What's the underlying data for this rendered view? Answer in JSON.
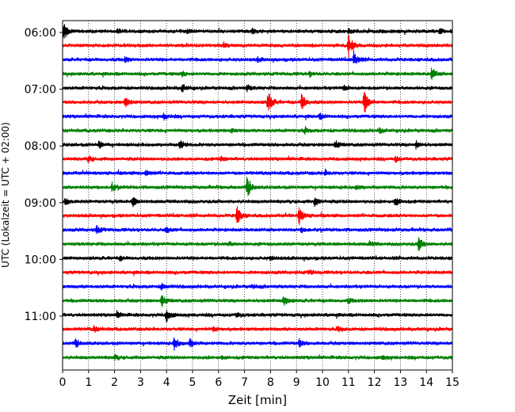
{
  "chart_data": {
    "type": "line",
    "title": "",
    "xlabel": "Zeit  [min]",
    "ylabel": "UTC (Lokalzeit = UTC + 02:00)",
    "xlim": [
      0,
      15
    ],
    "xticks": [
      0,
      1,
      2,
      3,
      4,
      5,
      6,
      7,
      8,
      9,
      10,
      11,
      12,
      13,
      14,
      15
    ],
    "grid": "vertical dotted",
    "yticks": [
      "06:00",
      "07:00",
      "08:00",
      "09:00",
      "10:00",
      "11:00"
    ],
    "trace_interval_min": 15,
    "trace_colors": [
      "#000000",
      "#ff0000",
      "#0000ff",
      "#008000"
    ],
    "traces": [
      {
        "start": "06:00",
        "color": "#000000",
        "events": [
          {
            "x": 0.05,
            "amp": 1.0
          },
          {
            "x": 2.1,
            "amp": 0.25
          },
          {
            "x": 4.8,
            "amp": 0.25
          },
          {
            "x": 7.3,
            "amp": 0.25
          },
          {
            "x": 11.0,
            "amp": 0.25
          },
          {
            "x": 14.5,
            "amp": 0.25
          }
        ]
      },
      {
        "start": "06:15",
        "color": "#ff0000",
        "events": [
          {
            "x": 6.2,
            "amp": 0.35
          },
          {
            "x": 11.0,
            "amp": 1.4
          }
        ]
      },
      {
        "start": "06:30",
        "color": "#0000ff",
        "events": [
          {
            "x": 2.4,
            "amp": 0.25
          },
          {
            "x": 11.2,
            "amp": 0.9
          },
          {
            "x": 7.5,
            "amp": 0.2
          }
        ]
      },
      {
        "start": "06:45",
        "color": "#008000",
        "events": [
          {
            "x": 4.6,
            "amp": 0.3
          },
          {
            "x": 14.2,
            "amp": 0.7
          },
          {
            "x": 9.5,
            "amp": 0.25
          }
        ]
      },
      {
        "start": "07:00",
        "color": "#000000",
        "events": [
          {
            "x": 4.6,
            "amp": 0.45
          },
          {
            "x": 7.1,
            "amp": 0.3
          },
          {
            "x": 10.8,
            "amp": 0.3
          }
        ]
      },
      {
        "start": "07:15",
        "color": "#ff0000",
        "events": [
          {
            "x": 2.4,
            "amp": 0.7
          },
          {
            "x": 7.9,
            "amp": 1.3
          },
          {
            "x": 9.2,
            "amp": 1.0
          },
          {
            "x": 11.6,
            "amp": 1.4
          }
        ]
      },
      {
        "start": "07:30",
        "color": "#0000ff",
        "events": [
          {
            "x": 3.9,
            "amp": 0.35
          },
          {
            "x": 9.9,
            "amp": 0.3
          }
        ]
      },
      {
        "start": "07:45",
        "color": "#008000",
        "events": [
          {
            "x": 9.3,
            "amp": 0.3
          },
          {
            "x": 12.2,
            "amp": 0.3
          },
          {
            "x": 6.5,
            "amp": 0.2
          }
        ]
      },
      {
        "start": "08:00",
        "color": "#000000",
        "events": [
          {
            "x": 1.4,
            "amp": 0.4
          },
          {
            "x": 4.5,
            "amp": 0.6
          },
          {
            "x": 10.5,
            "amp": 0.45
          },
          {
            "x": 13.6,
            "amp": 0.4
          }
        ]
      },
      {
        "start": "08:15",
        "color": "#ff0000",
        "events": [
          {
            "x": 1.0,
            "amp": 0.35
          },
          {
            "x": 6.1,
            "amp": 0.25
          },
          {
            "x": 12.8,
            "amp": 0.3
          }
        ]
      },
      {
        "start": "08:30",
        "color": "#0000ff",
        "events": [
          {
            "x": 3.2,
            "amp": 0.3
          },
          {
            "x": 10.1,
            "amp": 0.25
          }
        ]
      },
      {
        "start": "08:45",
        "color": "#008000",
        "events": [
          {
            "x": 1.9,
            "amp": 0.45
          },
          {
            "x": 7.1,
            "amp": 1.3
          },
          {
            "x": 11.3,
            "amp": 0.25
          }
        ]
      },
      {
        "start": "09:00",
        "color": "#000000",
        "events": [
          {
            "x": 0.1,
            "amp": 0.35
          },
          {
            "x": 2.7,
            "amp": 0.55
          },
          {
            "x": 9.7,
            "amp": 0.5
          },
          {
            "x": 12.8,
            "amp": 0.55
          }
        ]
      },
      {
        "start": "09:15",
        "color": "#ff0000",
        "events": [
          {
            "x": 6.7,
            "amp": 1.1
          },
          {
            "x": 9.1,
            "amp": 1.1
          }
        ]
      },
      {
        "start": "09:30",
        "color": "#0000ff",
        "events": [
          {
            "x": 1.3,
            "amp": 0.45
          },
          {
            "x": 4.0,
            "amp": 0.3
          },
          {
            "x": 9.2,
            "amp": 0.25
          }
        ]
      },
      {
        "start": "09:45",
        "color": "#008000",
        "events": [
          {
            "x": 6.4,
            "amp": 0.2
          },
          {
            "x": 11.8,
            "amp": 0.25
          },
          {
            "x": 13.7,
            "amp": 0.8
          }
        ]
      },
      {
        "start": "10:00",
        "color": "#000000",
        "events": [
          {
            "x": 2.2,
            "amp": 0.2
          },
          {
            "x": 8.0,
            "amp": 0.2
          }
        ]
      },
      {
        "start": "10:15",
        "color": "#ff0000",
        "events": [
          {
            "x": 9.5,
            "amp": 0.25
          }
        ]
      },
      {
        "start": "10:30",
        "color": "#0000ff",
        "events": [
          {
            "x": 3.8,
            "amp": 0.35
          },
          {
            "x": 7.3,
            "amp": 0.2
          }
        ]
      },
      {
        "start": "10:45",
        "color": "#008000",
        "events": [
          {
            "x": 3.8,
            "amp": 0.75
          },
          {
            "x": 8.5,
            "amp": 0.6
          },
          {
            "x": 11.0,
            "amp": 0.25
          }
        ]
      },
      {
        "start": "11:00",
        "color": "#000000",
        "events": [
          {
            "x": 2.1,
            "amp": 0.3
          },
          {
            "x": 4.0,
            "amp": 0.85
          },
          {
            "x": 6.7,
            "amp": 0.25
          }
        ]
      },
      {
        "start": "11:15",
        "color": "#ff0000",
        "events": [
          {
            "x": 1.2,
            "amp": 0.3
          },
          {
            "x": 5.8,
            "amp": 0.25
          },
          {
            "x": 10.6,
            "amp": 0.25
          }
        ]
      },
      {
        "start": "11:30",
        "color": "#0000ff",
        "events": [
          {
            "x": 0.5,
            "amp": 0.45
          },
          {
            "x": 4.3,
            "amp": 0.7
          },
          {
            "x": 4.9,
            "amp": 0.5
          },
          {
            "x": 9.1,
            "amp": 0.4
          }
        ]
      },
      {
        "start": "11:45",
        "color": "#008000",
        "events": [
          {
            "x": 2.0,
            "amp": 0.25
          },
          {
            "x": 6.1,
            "amp": 0.2
          },
          {
            "x": 12.3,
            "amp": 0.2
          }
        ]
      }
    ]
  }
}
